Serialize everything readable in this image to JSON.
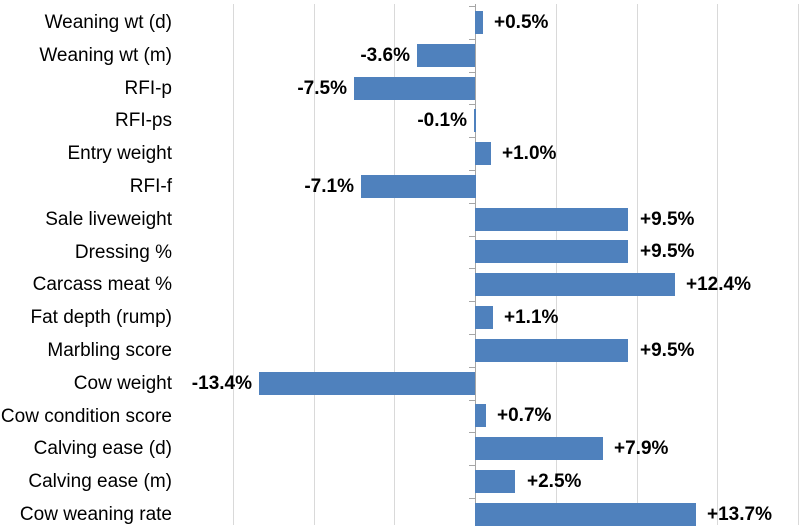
{
  "chart_data": {
    "type": "bar",
    "orientation": "horizontal",
    "categories": [
      "Weaning wt (d)",
      "Weaning wt (m)",
      "RFI-p",
      "RFI-ps",
      "Entry weight",
      "RFI-f",
      "Sale liveweight",
      "Dressing %",
      "Carcass meat %",
      "Fat depth (rump)",
      "Marbling score",
      "Cow weight",
      "Cow condition score",
      "Calving ease (d)",
      "Calving ease (m)",
      "Cow weaning rate"
    ],
    "values": [
      0.5,
      -3.6,
      -7.5,
      -0.1,
      1.0,
      -7.1,
      9.5,
      9.5,
      12.4,
      1.1,
      9.5,
      -13.4,
      0.7,
      7.9,
      2.5,
      13.7
    ],
    "labels": [
      "+0.5%",
      "-3.6%",
      "-7.5%",
      "-0.1%",
      "+1.0%",
      "-7.1%",
      "+9.5%",
      "+9.5%",
      "+12.4%",
      "+1.1%",
      "+9.5%",
      "-13.4%",
      "+0.7%",
      "+7.9%",
      "+2.5%",
      "+13.7%"
    ],
    "xlim": [
      -15,
      20
    ],
    "gridline_step": 5,
    "grid": true,
    "tick_labels_visible": false,
    "legend": "none",
    "bar_color": "#4f81bd",
    "gridline_color": "#d9d9d9",
    "axis_color": "#a6a6a6",
    "label_color": "#000000"
  }
}
